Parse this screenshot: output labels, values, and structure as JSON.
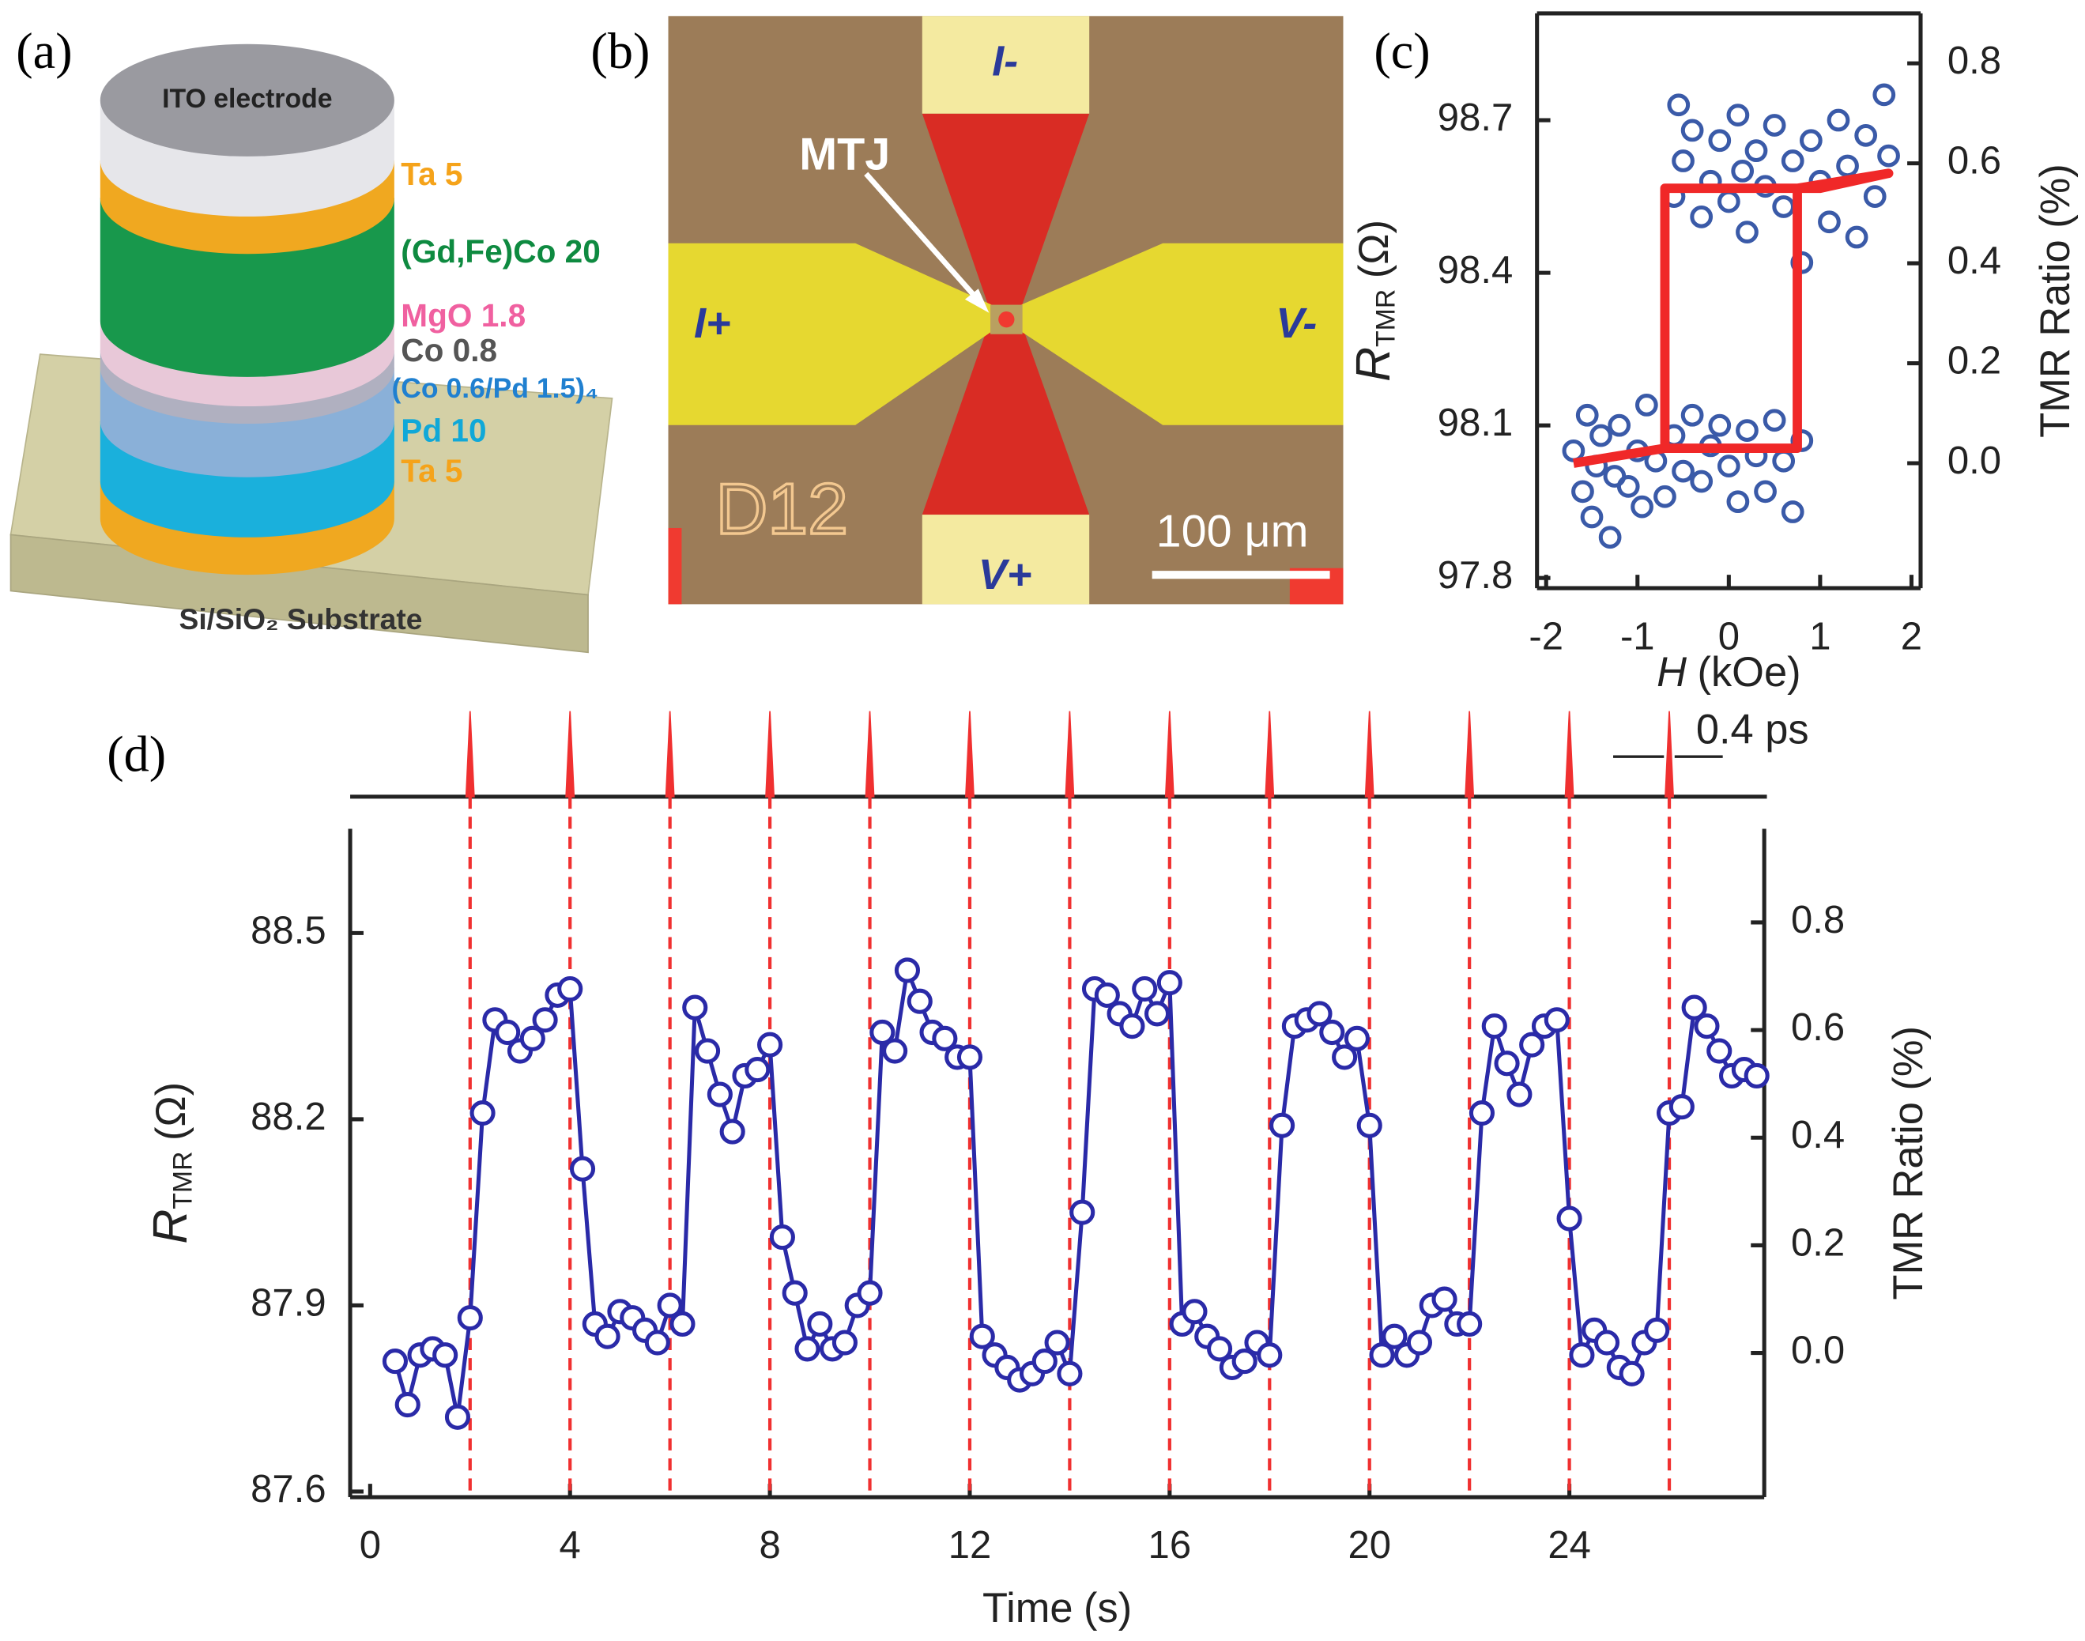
{
  "diagram": {
    "a": {
      "label": "(a)",
      "top": "ITO electrode",
      "layers": [
        "Ta 5",
        "(Gd,Fe)Co 20",
        "MgO 1.8",
        "Co 0.8",
        "(Co 0.6/Pd 1.5)₄",
        "Pd 10",
        "Ta 5"
      ],
      "substrate": "Si/SiO₂ Substrate"
    },
    "b": {
      "label": "(b)",
      "mtj": "MTJ",
      "i_minus": "I-",
      "i_plus": "I+",
      "v_minus": "V-",
      "v_plus": "V+",
      "device": "D12",
      "scale": "100 μm"
    }
  },
  "chart_data": [
    {
      "type": "scatter",
      "panel": "(c)",
      "xlabel": {
        "var": "H",
        "unit": "(kOe)"
      },
      "ylabel": {
        "var": "R",
        "sub": "TMR",
        "unit": "(Ω)"
      },
      "y2label": "TMR Ratio (%)",
      "xlim": [
        -2.1,
        2.1
      ],
      "xticks": [
        -2,
        -1,
        0,
        1,
        2
      ],
      "ylim": [
        97.78,
        98.91
      ],
      "yticks": [
        97.8,
        98.1,
        98.4,
        98.7
      ],
      "y2lim": [
        -0.25,
        0.9
      ],
      "y2ticks": [
        {
          "value": 0,
          "label": "0.0"
        },
        0.2,
        0.4,
        0.6,
        0.8
      ],
      "series": [
        {
          "type": "scatter",
          "color": "#3a5aa8",
          "x": [
            -1.7,
            -1.6,
            -1.55,
            -1.5,
            -1.45,
            -1.4,
            -1.3,
            -1.25,
            -1.2,
            -1.1,
            -1.0,
            -0.95,
            -0.9,
            -0.8,
            -0.7,
            -0.6,
            -0.5,
            -0.4,
            -0.3,
            -0.2,
            -0.1,
            0.0,
            0.1,
            0.2,
            0.3,
            0.4,
            0.5,
            0.6,
            0.7,
            0.8,
            -0.6,
            -0.55,
            -0.5,
            -0.4,
            -0.3,
            -0.2,
            -0.1,
            0.0,
            0.1,
            0.15,
            0.2,
            0.3,
            0.4,
            0.5,
            0.6,
            0.7,
            0.8,
            0.9,
            1.0,
            1.1,
            1.2,
            1.3,
            1.4,
            1.5,
            1.6,
            1.7,
            1.75
          ],
          "values": [
            98.05,
            97.97,
            98.12,
            97.92,
            98.02,
            98.08,
            97.88,
            98.0,
            98.1,
            97.98,
            98.05,
            97.94,
            98.14,
            98.03,
            97.96,
            98.08,
            98.01,
            98.12,
            97.99,
            98.06,
            98.1,
            98.02,
            97.95,
            98.09,
            98.04,
            97.97,
            98.11,
            98.03,
            97.93,
            98.07,
            98.55,
            98.73,
            98.62,
            98.68,
            98.51,
            98.58,
            98.66,
            98.54,
            98.71,
            98.6,
            98.48,
            98.64,
            98.57,
            98.69,
            98.53,
            98.62,
            98.42,
            98.66,
            98.58,
            98.5,
            98.7,
            98.61,
            98.47,
            98.67,
            98.55,
            98.75,
            98.63
          ]
        },
        {
          "type": "line",
          "color": "#f02828",
          "axis": "y2",
          "x": [
            -1.7,
            -0.7,
            0.75,
            0.75,
            1.0,
            1.75,
            0.75,
            -0.7,
            -0.7
          ],
          "values": [
            0.0,
            0.03,
            0.03,
            0.55,
            0.55,
            0.58,
            0.55,
            0.55,
            0.03
          ]
        }
      ]
    },
    {
      "type": "line",
      "panel": "(d)",
      "xlabel": {
        "var": "Time",
        "unit": "(s)"
      },
      "ylabel": {
        "var": "R",
        "sub": "TMR",
        "unit": "(Ω)"
      },
      "y2label": "TMR Ratio (%)",
      "xlim": [
        -0.4,
        27.9
      ],
      "xticks": [
        0,
        4,
        8,
        12,
        16,
        20,
        24
      ],
      "ylim": [
        87.591,
        88.668
      ],
      "yticks": [
        87.6,
        87.9,
        88.2,
        88.5
      ],
      "y2lim": [
        -0.268,
        0.974
      ],
      "y2ticks": [
        {
          "value": 0,
          "label": "0.0"
        },
        0.2,
        0.4,
        0.6,
        0.8
      ],
      "pulses": [
        2,
        4,
        6,
        8,
        10,
        12,
        14,
        16,
        18,
        20,
        22,
        24,
        26
      ],
      "pulse_color": "#f03030",
      "annotation": "0.4 ps",
      "series": [
        {
          "type": "line",
          "color": "#2a2aa8",
          "markers": true,
          "x": [
            0.5,
            0.75,
            1,
            1.25,
            1.5,
            1.75,
            2,
            2.25,
            2.5,
            2.75,
            3,
            3.25,
            3.5,
            3.75,
            4,
            4.25,
            4.5,
            4.75,
            5,
            5.25,
            5.5,
            5.75,
            6,
            6.25,
            6.5,
            6.75,
            7,
            7.25,
            7.5,
            7.75,
            8,
            8.25,
            8.5,
            8.75,
            9,
            9.25,
            9.5,
            9.75,
            10,
            10.25,
            10.5,
            10.75,
            11,
            11.25,
            11.5,
            11.75,
            12,
            12.25,
            12.5,
            12.75,
            13,
            13.25,
            13.5,
            13.75,
            14,
            14.25,
            14.5,
            14.75,
            15,
            15.25,
            15.5,
            15.75,
            16,
            16.25,
            16.5,
            16.75,
            17,
            17.25,
            17.5,
            17.75,
            18,
            18.25,
            18.5,
            18.75,
            19,
            19.25,
            19.5,
            19.75,
            20,
            20.25,
            20.5,
            20.75,
            21,
            21.25,
            21.5,
            21.75,
            22,
            22.25,
            22.5,
            22.75,
            23,
            23.25,
            23.5,
            23.75,
            24,
            24.25,
            24.5,
            24.75,
            25,
            25.25,
            25.5,
            25.75,
            26,
            26.25,
            26.5,
            26.75,
            27,
            27.25,
            27.5,
            27.75
          ],
          "values": [
            87.81,
            87.74,
            87.82,
            87.83,
            87.82,
            87.72,
            87.88,
            88.21,
            88.36,
            88.34,
            88.31,
            88.33,
            88.36,
            88.4,
            88.41,
            88.12,
            87.87,
            87.85,
            87.89,
            87.88,
            87.86,
            87.84,
            87.9,
            87.87,
            88.38,
            88.31,
            88.24,
            88.18,
            88.27,
            88.28,
            88.32,
            88.01,
            87.92,
            87.83,
            87.87,
            87.83,
            87.84,
            87.9,
            87.92,
            88.34,
            88.31,
            88.44,
            88.39,
            88.34,
            88.33,
            88.3,
            88.3,
            87.85,
            87.82,
            87.8,
            87.78,
            87.79,
            87.81,
            87.84,
            87.79,
            88.05,
            88.41,
            88.4,
            88.37,
            88.35,
            88.41,
            88.37,
            88.42,
            87.87,
            87.89,
            87.85,
            87.83,
            87.8,
            87.81,
            87.84,
            87.82,
            88.19,
            88.35,
            88.36,
            88.37,
            88.34,
            88.3,
            88.33,
            88.19,
            87.82,
            87.85,
            87.82,
            87.84,
            87.9,
            87.91,
            87.87,
            87.87,
            88.21,
            88.35,
            88.29,
            88.24,
            88.32,
            88.35,
            88.36,
            88.04,
            87.82,
            87.86,
            87.84,
            87.8,
            87.79,
            87.84,
            87.86,
            88.21,
            88.22,
            88.38,
            88.35,
            88.31,
            88.27,
            88.28,
            88.27
          ]
        }
      ]
    }
  ]
}
